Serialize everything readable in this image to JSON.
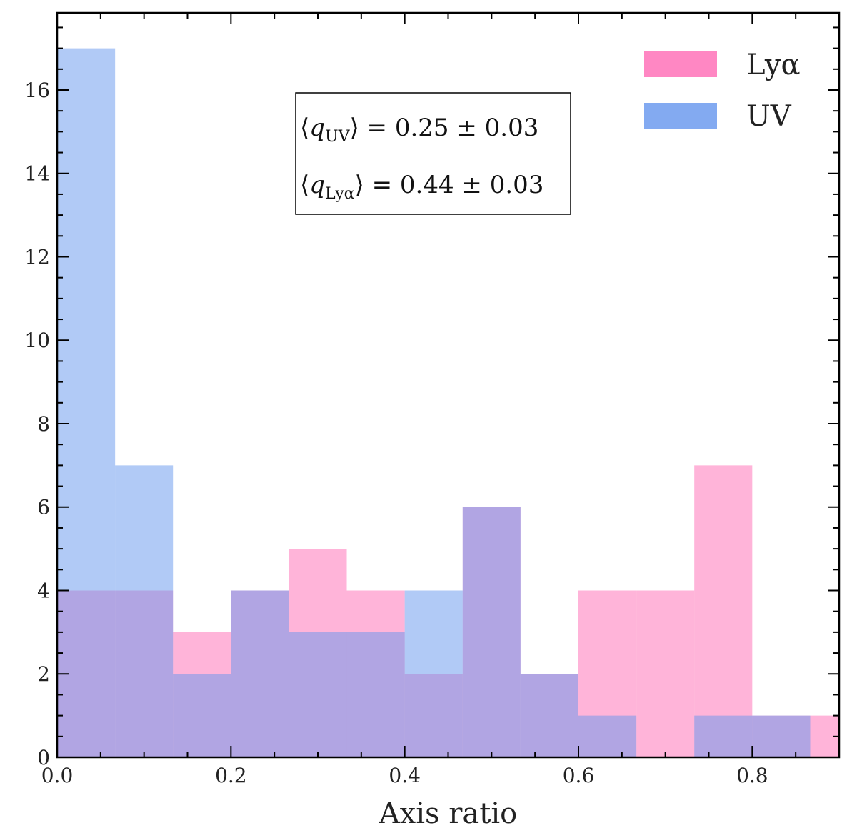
{
  "chart_data": {
    "type": "bar",
    "bin_edges": [
      0.0,
      0.0667,
      0.1333,
      0.2,
      0.2667,
      0.3333,
      0.4,
      0.4667,
      0.5333,
      0.6,
      0.6667,
      0.7333,
      0.8,
      0.8667,
      0.9333
    ],
    "series": [
      {
        "name": "Lyα",
        "color": "#ff69b4",
        "values": [
          4,
          4,
          3,
          4,
          5,
          4,
          2,
          6,
          2,
          4,
          4,
          7,
          1,
          1
        ]
      },
      {
        "name": "UV",
        "color": "#6495ed",
        "values": [
          17,
          7,
          2,
          4,
          3,
          3,
          4,
          6,
          2,
          1,
          0,
          1,
          1,
          0
        ]
      }
    ],
    "xlabel": "Axis ratio",
    "ylabel": "",
    "xlim": [
      0.0,
      0.9
    ],
    "ylim": [
      0,
      17.85
    ],
    "x_ticks": [
      "0.0",
      "0.2",
      "0.4",
      "0.6",
      "0.8"
    ],
    "y_ticks": [
      "0",
      "2",
      "4",
      "6",
      "8",
      "10",
      "12",
      "14",
      "16"
    ],
    "legend_position": "top-right",
    "grid": false,
    "annotation": {
      "line1": {
        "left": "⟨",
        "var": "q",
        "sub": "UV",
        "right": "⟩ = 0.25 ± 0.03"
      },
      "line2": {
        "left": "⟨",
        "var": "q",
        "sub": "Lyα",
        "right": "⟩ = 0.44 ± 0.03"
      }
    }
  }
}
